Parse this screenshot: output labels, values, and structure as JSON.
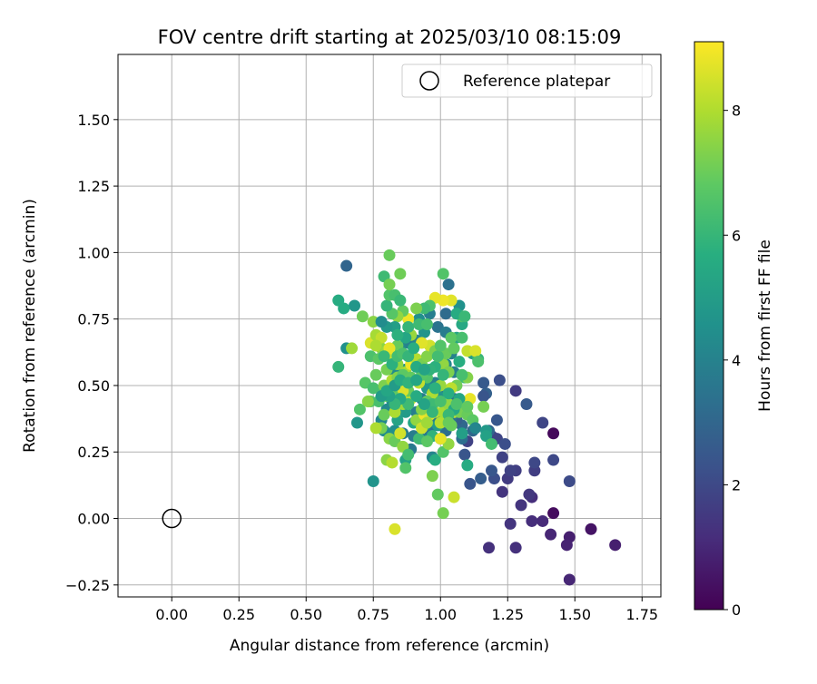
{
  "chart_data": {
    "type": "scatter",
    "title": "FOV centre drift starting at 2025/03/10 08:15:09",
    "xlabel": "Angular distance from reference (arcmin)",
    "ylabel": "Rotation from reference (arcmin)",
    "xlim": [
      -0.2,
      1.82
    ],
    "ylim": [
      -0.295,
      1.745
    ],
    "xticks": [
      "0.00",
      "0.25",
      "0.50",
      "0.75",
      "1.00",
      "1.25",
      "1.50",
      "1.75"
    ],
    "yticks": [
      "−0.25",
      "0.00",
      "0.25",
      "0.50",
      "0.75",
      "1.00",
      "1.25",
      "1.50"
    ],
    "grid": true,
    "legend": {
      "position": "top-right",
      "entries": [
        "Reference platepar"
      ]
    },
    "reference_point": {
      "x": 0.0,
      "y": 0.0
    },
    "colorbar": {
      "label": "Hours from first FF file",
      "ticks": [
        "0",
        "2",
        "4",
        "6",
        "8"
      ],
      "min": 0,
      "max": 9.1,
      "colormap": "viridis"
    },
    "points": [
      [
        1.42,
        0.32,
        0.2
      ],
      [
        1.42,
        0.02,
        0.3
      ],
      [
        1.56,
        -0.04,
        0.5
      ],
      [
        1.65,
        -0.1,
        0.8
      ],
      [
        1.48,
        -0.07,
        0.8
      ],
      [
        1.47,
        -0.1,
        0.9
      ],
      [
        1.48,
        -0.23,
        1.0
      ],
      [
        1.41,
        -0.06,
        1.0
      ],
      [
        1.38,
        -0.01,
        1.1
      ],
      [
        1.34,
        -0.01,
        1.2
      ],
      [
        1.34,
        0.08,
        1.2
      ],
      [
        1.28,
        -0.11,
        1.3
      ],
      [
        1.18,
        -0.11,
        1.3
      ],
      [
        1.26,
        -0.02,
        1.4
      ],
      [
        1.3,
        0.05,
        1.4
      ],
      [
        1.33,
        0.09,
        1.5
      ],
      [
        1.23,
        0.1,
        1.4
      ],
      [
        1.25,
        0.15,
        1.6
      ],
      [
        1.28,
        0.18,
        1.7
      ],
      [
        1.26,
        0.18,
        1.8
      ],
      [
        1.35,
        0.18,
        1.7
      ],
      [
        1.35,
        0.21,
        2.0
      ],
      [
        1.42,
        0.22,
        2.0
      ],
      [
        1.48,
        0.14,
        2.1
      ],
      [
        1.2,
        0.15,
        2.2
      ],
      [
        1.23,
        0.23,
        1.8
      ],
      [
        1.21,
        0.3,
        1.9
      ],
      [
        1.24,
        0.28,
        2.2
      ],
      [
        1.19,
        0.31,
        1.9
      ],
      [
        1.1,
        0.29,
        1.8
      ],
      [
        1.09,
        0.24,
        2.4
      ],
      [
        1.11,
        0.13,
        2.4
      ],
      [
        1.15,
        0.15,
        2.7
      ],
      [
        1.19,
        0.18,
        2.5
      ],
      [
        1.28,
        0.48,
        1.6
      ],
      [
        1.32,
        0.43,
        2.6
      ],
      [
        1.38,
        0.36,
        1.9
      ],
      [
        1.22,
        0.52,
        2.2
      ],
      [
        1.17,
        0.47,
        2.8
      ],
      [
        1.16,
        0.46,
        2.4
      ],
      [
        1.16,
        0.51,
        2.6
      ],
      [
        1.21,
        0.37,
        2.5
      ],
      [
        1.18,
        0.33,
        3.0
      ],
      [
        1.12,
        0.33,
        3.1
      ],
      [
        1.08,
        0.35,
        3.1
      ],
      [
        1.08,
        0.3,
        3.3
      ],
      [
        1.06,
        0.37,
        2.8
      ],
      [
        1.04,
        0.38,
        3.5
      ],
      [
        1.02,
        0.33,
        3.3
      ],
      [
        0.98,
        0.38,
        3.6
      ],
      [
        0.96,
        0.33,
        3.6
      ],
      [
        1.0,
        0.3,
        3.4
      ],
      [
        1.02,
        0.42,
        3.1
      ],
      [
        1.05,
        0.45,
        3.2
      ],
      [
        1.01,
        0.48,
        3.7
      ],
      [
        0.98,
        0.51,
        4.0
      ],
      [
        0.93,
        0.45,
        3.8
      ],
      [
        0.91,
        0.4,
        3.9
      ],
      [
        0.9,
        0.31,
        3.8
      ],
      [
        0.89,
        0.26,
        3.7
      ],
      [
        0.86,
        0.32,
        3.9
      ],
      [
        0.93,
        0.3,
        3.9
      ],
      [
        0.97,
        0.23,
        4.1
      ],
      [
        0.65,
        0.95,
        3.0
      ],
      [
        1.02,
        0.77,
        3.2
      ],
      [
        1.03,
        0.88,
        3.4
      ],
      [
        0.99,
        0.72,
        3.5
      ],
      [
        1.07,
        0.8,
        4.6
      ],
      [
        1.02,
        0.7,
        3.8
      ],
      [
        1.04,
        0.62,
        4.0
      ],
      [
        1.02,
        0.58,
        4.2
      ],
      [
        1.05,
        0.55,
        3.9
      ],
      [
        1.06,
        0.68,
        5.3
      ],
      [
        1.12,
        0.62,
        5.0
      ],
      [
        1.08,
        0.73,
        5.5
      ],
      [
        1.14,
        0.6,
        6.0
      ],
      [
        1.09,
        0.53,
        6.3
      ],
      [
        0.96,
        0.77,
        3.9
      ],
      [
        0.92,
        0.75,
        4.5
      ],
      [
        0.94,
        0.7,
        4.7
      ],
      [
        0.91,
        0.67,
        4.1
      ],
      [
        0.88,
        0.66,
        4.0
      ],
      [
        0.85,
        0.64,
        4.3
      ],
      [
        0.83,
        0.55,
        4.4
      ],
      [
        0.87,
        0.56,
        4.6
      ],
      [
        0.9,
        0.6,
        4.6
      ],
      [
        0.86,
        0.51,
        4.9
      ],
      [
        0.84,
        0.49,
        4.7
      ],
      [
        0.82,
        0.44,
        4.5
      ],
      [
        0.8,
        0.41,
        4.3
      ],
      [
        0.78,
        0.37,
        4.2
      ],
      [
        0.79,
        0.33,
        4.4
      ],
      [
        0.83,
        0.33,
        4.5
      ],
      [
        0.84,
        0.37,
        5.3
      ],
      [
        0.87,
        0.4,
        5.0
      ],
      [
        0.9,
        0.36,
        5.4
      ],
      [
        0.93,
        0.4,
        4.8
      ],
      [
        0.95,
        0.49,
        4.9
      ],
      [
        0.96,
        0.43,
        5.2
      ],
      [
        0.99,
        0.46,
        4.7
      ],
      [
        0.99,
        0.35,
        5.0
      ],
      [
        0.94,
        0.35,
        5.8
      ],
      [
        0.97,
        0.31,
        5.9
      ],
      [
        1.1,
        0.2,
        5.6
      ],
      [
        0.98,
        0.22,
        5.7
      ],
      [
        0.87,
        0.22,
        5.2
      ],
      [
        0.75,
        0.14,
        4.7
      ],
      [
        0.69,
        0.36,
        4.8
      ],
      [
        0.65,
        0.64,
        4.6
      ],
      [
        0.68,
        0.8,
        4.8
      ],
      [
        0.64,
        0.79,
        5.6
      ],
      [
        0.62,
        0.82,
        5.6
      ],
      [
        0.62,
        0.57,
        6.0
      ],
      [
        0.7,
        0.41,
        6.6
      ],
      [
        0.72,
        0.51,
        6.7
      ],
      [
        0.74,
        0.44,
        6.8
      ],
      [
        0.77,
        0.44,
        6.4
      ],
      [
        0.78,
        0.48,
        6.7
      ],
      [
        0.79,
        0.39,
        7.0
      ],
      [
        0.78,
        0.34,
        7.2
      ],
      [
        0.81,
        0.3,
        7.5
      ],
      [
        0.83,
        0.29,
        7.0
      ],
      [
        0.8,
        0.22,
        7.5
      ],
      [
        0.86,
        0.27,
        7.6
      ],
      [
        0.87,
        0.19,
        6.6
      ],
      [
        0.88,
        0.24,
        6.3
      ],
      [
        0.92,
        0.3,
        6.2
      ],
      [
        0.95,
        0.29,
        6.8
      ],
      [
        0.97,
        0.16,
        7.3
      ],
      [
        0.99,
        0.09,
        6.9
      ],
      [
        1.01,
        0.02,
        7.2
      ],
      [
        1.01,
        0.25,
        6.6
      ],
      [
        1.03,
        0.28,
        7.6
      ],
      [
        1.04,
        0.35,
        7.0
      ],
      [
        1.05,
        0.08,
        8.4
      ],
      [
        0.83,
        -0.04,
        8.6
      ],
      [
        0.82,
        0.21,
        8.1
      ],
      [
        0.85,
        0.32,
        8.5
      ],
      [
        0.76,
        0.34,
        8.0
      ],
      [
        0.73,
        0.44,
        7.5
      ],
      [
        0.75,
        0.49,
        6.4
      ],
      [
        0.8,
        0.46,
        7.0
      ],
      [
        0.83,
        0.4,
        8.0
      ],
      [
        0.86,
        0.43,
        7.8
      ],
      [
        0.89,
        0.45,
        8.2
      ],
      [
        0.91,
        0.37,
        7.6
      ],
      [
        0.93,
        0.34,
        8.4
      ],
      [
        0.94,
        0.39,
        8.9
      ],
      [
        0.96,
        0.39,
        8.7
      ],
      [
        0.98,
        0.4,
        8.3
      ],
      [
        0.95,
        0.36,
        7.8
      ],
      [
        0.93,
        0.41,
        7.4
      ],
      [
        1.0,
        0.36,
        8.1
      ],
      [
        1.0,
        0.3,
        8.8
      ],
      [
        1.01,
        0.4,
        7.9
      ],
      [
        1.03,
        0.43,
        7.6
      ],
      [
        1.05,
        0.4,
        8.5
      ],
      [
        1.07,
        0.4,
        7.2
      ],
      [
        1.1,
        0.39,
        7.0
      ],
      [
        1.12,
        0.37,
        6.8
      ],
      [
        1.11,
        0.45,
        8.8
      ],
      [
        1.1,
        0.53,
        7.4
      ],
      [
        1.08,
        0.54,
        6.4
      ],
      [
        1.06,
        0.5,
        7.1
      ],
      [
        1.04,
        0.49,
        8.2
      ],
      [
        1.0,
        0.5,
        7.7
      ],
      [
        0.97,
        0.47,
        8.0
      ],
      [
        0.95,
        0.53,
        6.6
      ],
      [
        0.92,
        0.51,
        8.3
      ],
      [
        0.88,
        0.48,
        7.0
      ],
      [
        0.86,
        0.48,
        8.6
      ],
      [
        0.82,
        0.47,
        6.9
      ],
      [
        0.79,
        0.5,
        7.3
      ],
      [
        0.76,
        0.54,
        7.0
      ],
      [
        0.74,
        0.61,
        6.5
      ],
      [
        0.74,
        0.66,
        8.6
      ],
      [
        0.76,
        0.69,
        7.9
      ],
      [
        0.78,
        0.64,
        7.5
      ],
      [
        0.8,
        0.63,
        7.8
      ],
      [
        0.82,
        0.61,
        8.4
      ],
      [
        0.84,
        0.58,
        7.6
      ],
      [
        0.87,
        0.55,
        7.9
      ],
      [
        0.89,
        0.58,
        8.9
      ],
      [
        0.91,
        0.6,
        8.1
      ],
      [
        0.93,
        0.58,
        7.2
      ],
      [
        0.95,
        0.61,
        7.4
      ],
      [
        0.96,
        0.65,
        8.5
      ],
      [
        0.98,
        0.63,
        7.3
      ],
      [
        1.01,
        0.58,
        7.6
      ],
      [
        1.03,
        0.55,
        7.3
      ],
      [
        1.02,
        0.62,
        7.0
      ],
      [
        1.04,
        0.68,
        6.8
      ],
      [
        1.08,
        0.68,
        6.4
      ],
      [
        1.1,
        0.63,
        8.3
      ],
      [
        1.13,
        0.63,
        8.6
      ],
      [
        1.08,
        0.76,
        6.6
      ],
      [
        1.04,
        0.82,
        8.7
      ],
      [
        1.01,
        0.82,
        8.9
      ],
      [
        0.98,
        0.83,
        8.8
      ],
      [
        0.96,
        0.8,
        6.5
      ],
      [
        0.94,
        0.79,
        6.2
      ],
      [
        0.91,
        0.79,
        7.3
      ],
      [
        0.88,
        0.75,
        8.9
      ],
      [
        0.86,
        0.78,
        6.9
      ],
      [
        0.84,
        0.76,
        7.6
      ],
      [
        0.82,
        0.77,
        6.7
      ],
      [
        0.8,
        0.8,
        6.0
      ],
      [
        0.81,
        0.84,
        6.6
      ],
      [
        0.83,
        0.84,
        6.4
      ],
      [
        0.85,
        0.82,
        6.1
      ],
      [
        0.79,
        0.91,
        6.2
      ],
      [
        0.81,
        0.88,
        7.2
      ],
      [
        0.85,
        0.92,
        7.1
      ],
      [
        0.81,
        0.99,
        7.0
      ],
      [
        1.01,
        0.92,
        6.6
      ],
      [
        0.75,
        0.74,
        7.5
      ],
      [
        0.71,
        0.76,
        7.1
      ],
      [
        0.67,
        0.64,
        7.8
      ],
      [
        0.77,
        0.6,
        6.8
      ],
      [
        0.8,
        0.56,
        7.2
      ],
      [
        0.82,
        0.52,
        8.0
      ],
      [
        0.84,
        0.53,
        7.4
      ],
      [
        0.86,
        0.54,
        6.8
      ],
      [
        0.89,
        0.53,
        6.9
      ],
      [
        0.93,
        0.54,
        6.7
      ],
      [
        0.95,
        0.44,
        6.9
      ],
      [
        0.97,
        0.43,
        6.2
      ],
      [
        0.98,
        0.57,
        5.8
      ],
      [
        0.99,
        0.61,
        6.3
      ],
      [
        1.07,
        0.59,
        5.7
      ],
      [
        0.93,
        0.66,
        8.7
      ],
      [
        0.89,
        0.69,
        7.7
      ],
      [
        0.84,
        0.65,
        7.0
      ],
      [
        0.81,
        0.64,
        8.8
      ],
      [
        0.78,
        0.68,
        8.3
      ],
      [
        0.76,
        0.65,
        8.0
      ],
      [
        0.79,
        0.61,
        6.1
      ],
      [
        0.82,
        0.58,
        5.8
      ],
      [
        0.84,
        0.61,
        6.3
      ],
      [
        0.86,
        0.62,
        6.5
      ],
      [
        0.88,
        0.61,
        6.0
      ],
      [
        0.91,
        0.57,
        5.6
      ],
      [
        0.96,
        0.56,
        5.9
      ],
      [
        0.98,
        0.49,
        5.8
      ],
      [
        1.01,
        0.54,
        6.0
      ],
      [
        1.03,
        0.47,
        5.7
      ],
      [
        1.07,
        0.45,
        5.4
      ],
      [
        1.05,
        0.41,
        5.5
      ],
      [
        1.03,
        0.39,
        6.1
      ],
      [
        1.0,
        0.44,
        6.4
      ],
      [
        0.97,
        0.4,
        6.0
      ],
      [
        0.94,
        0.43,
        5.3
      ],
      [
        0.91,
        0.46,
        5.6
      ],
      [
        0.88,
        0.43,
        6.2
      ],
      [
        0.85,
        0.45,
        5.5
      ],
      [
        0.83,
        0.43,
        6.0
      ],
      [
        0.81,
        0.46,
        5.2
      ],
      [
        0.78,
        0.46,
        5.0
      ],
      [
        0.8,
        0.48,
        5.4
      ],
      [
        0.83,
        0.5,
        5.0
      ],
      [
        0.85,
        0.52,
        5.6
      ],
      [
        0.88,
        0.51,
        5.9
      ],
      [
        0.91,
        0.52,
        5.4
      ],
      [
        0.94,
        0.56,
        5.3
      ],
      [
        0.9,
        0.64,
        5.7
      ],
      [
        0.87,
        0.68,
        5.4
      ],
      [
        0.83,
        0.72,
        5.1
      ],
      [
        0.8,
        0.72,
        4.9
      ],
      [
        0.78,
        0.74,
        4.4
      ],
      [
        0.84,
        0.69,
        5.8
      ],
      [
        0.88,
        0.72,
        6.0
      ],
      [
        0.92,
        0.73,
        6.2
      ],
      [
        0.95,
        0.73,
        6.4
      ],
      [
        1.0,
        0.65,
        6.6
      ],
      [
        1.05,
        0.64,
        6.9
      ],
      [
        1.06,
        0.77,
        5.6
      ],
      [
        1.09,
        0.76,
        6.1
      ],
      [
        1.06,
        0.43,
        6.5
      ],
      [
        1.03,
        0.36,
        7.0
      ],
      [
        1.13,
        0.34,
        4.2
      ],
      [
        1.17,
        0.33,
        4.9
      ],
      [
        1.17,
        0.31,
        5.2
      ],
      [
        1.19,
        0.28,
        6.3
      ],
      [
        1.16,
        0.42,
        7.2
      ],
      [
        1.14,
        0.59,
        6.5
      ],
      [
        1.1,
        0.42,
        6.9
      ],
      [
        1.08,
        0.32,
        5.1
      ]
    ]
  }
}
